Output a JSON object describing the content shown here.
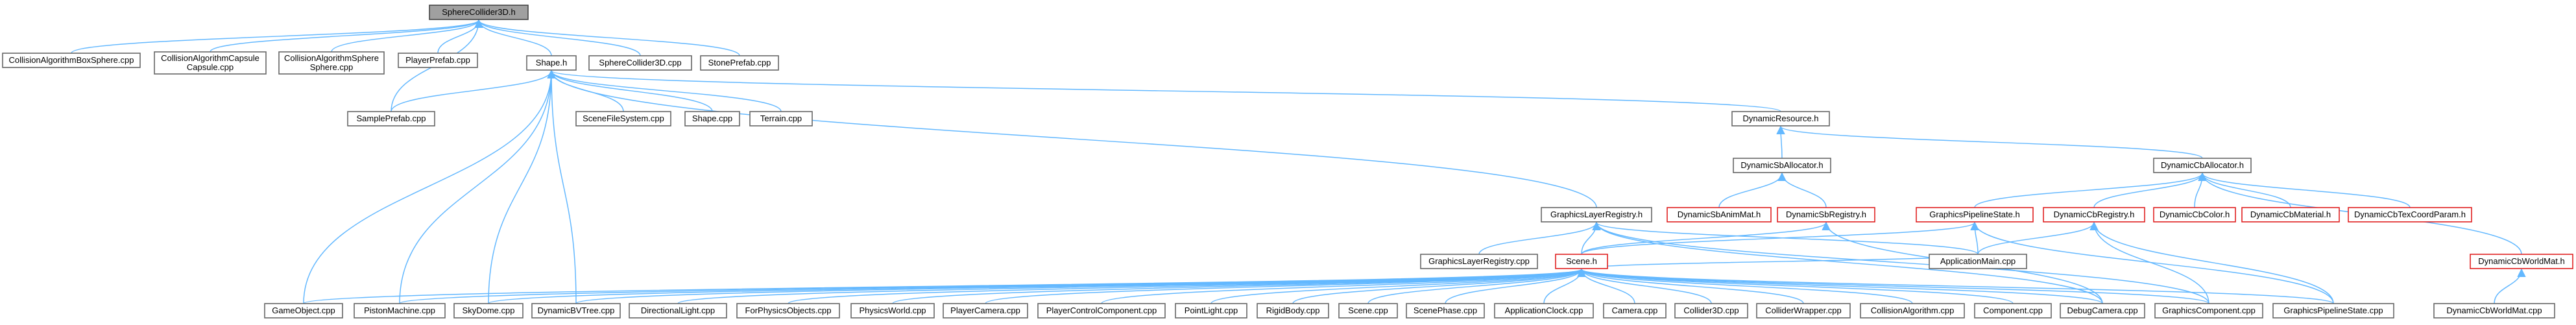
{
  "colors": {
    "edge": "#63b8ff",
    "node_border": "#666666",
    "focus_fill": "#a0a0a0",
    "incomplete_border": "#e02020"
  },
  "nodes": [
    {
      "id": "SphereCollider3D_h",
      "lines": [
        "SphereCollider3D.h"
      ],
      "style": "focus"
    },
    {
      "id": "CollisionAlgorithmBoxSphere_cpp",
      "lines": [
        "CollisionAlgorithmBoxSphere.cpp"
      ]
    },
    {
      "id": "CollisionAlgorithmCapsuleCapsule_cpp",
      "lines": [
        "CollisionAlgorithmCapsule",
        "Capsule.cpp"
      ]
    },
    {
      "id": "CollisionAlgorithmSphereSphere_cpp",
      "lines": [
        "CollisionAlgorithmSphere",
        "Sphere.cpp"
      ]
    },
    {
      "id": "PlayerPrefab_cpp",
      "lines": [
        "PlayerPrefab.cpp"
      ]
    },
    {
      "id": "Shape_h",
      "lines": [
        "Shape.h"
      ]
    },
    {
      "id": "SphereCollider3D_cpp",
      "lines": [
        "SphereCollider3D.cpp"
      ]
    },
    {
      "id": "StonePrefab_cpp",
      "lines": [
        "StonePrefab.cpp"
      ]
    },
    {
      "id": "SamplePrefab_cpp",
      "lines": [
        "SamplePrefab.cpp"
      ]
    },
    {
      "id": "SceneFileSystem_cpp",
      "lines": [
        "SceneFileSystem.cpp"
      ]
    },
    {
      "id": "Shape_cpp",
      "lines": [
        "Shape.cpp"
      ]
    },
    {
      "id": "Terrain_cpp",
      "lines": [
        "Terrain.cpp"
      ]
    },
    {
      "id": "DynamicResource_h",
      "lines": [
        "DynamicResource.h"
      ]
    },
    {
      "id": "DynamicSbAllocator_h",
      "lines": [
        "DynamicSbAllocator.h"
      ]
    },
    {
      "id": "DynamicCbAllocator_h",
      "lines": [
        "DynamicCbAllocator.h"
      ]
    },
    {
      "id": "GraphicsLayerRegistry_h",
      "lines": [
        "GraphicsLayerRegistry.h"
      ]
    },
    {
      "id": "DynamicSbAnimMat_h",
      "lines": [
        "DynamicSbAnimMat.h"
      ],
      "style": "red"
    },
    {
      "id": "DynamicSbRegistry_h",
      "lines": [
        "DynamicSbRegistry.h"
      ],
      "style": "red"
    },
    {
      "id": "GraphicsPipelineState_h",
      "lines": [
        "GraphicsPipelineState.h"
      ],
      "style": "red"
    },
    {
      "id": "DynamicCbRegistry_h",
      "lines": [
        "DynamicCbRegistry.h"
      ],
      "style": "red"
    },
    {
      "id": "DynamicCbColor_h",
      "lines": [
        "DynamicCbColor.h"
      ],
      "style": "red"
    },
    {
      "id": "DynamicCbMaterial_h",
      "lines": [
        "DynamicCbMaterial.h"
      ],
      "style": "red"
    },
    {
      "id": "DynamicCbTexCoordParam_h",
      "lines": [
        "DynamicCbTexCoordParam.h"
      ],
      "style": "red"
    },
    {
      "id": "GraphicsLayerRegistry_cpp",
      "lines": [
        "GraphicsLayerRegistry.cpp"
      ]
    },
    {
      "id": "Scene_h",
      "lines": [
        "Scene.h"
      ],
      "style": "red"
    },
    {
      "id": "ApplicationMain_cpp",
      "lines": [
        "ApplicationMain.cpp"
      ]
    },
    {
      "id": "DynamicCbWorldMat_h",
      "lines": [
        "DynamicCbWorldMat.h"
      ],
      "style": "red"
    },
    {
      "id": "GameObject_cpp",
      "lines": [
        "GameObject.cpp"
      ]
    },
    {
      "id": "PistonMachine_cpp",
      "lines": [
        "PistonMachine.cpp"
      ]
    },
    {
      "id": "SkyDome_cpp",
      "lines": [
        "SkyDome.cpp"
      ]
    },
    {
      "id": "DynamicBVTree_cpp",
      "lines": [
        "DynamicBVTree.cpp"
      ]
    },
    {
      "id": "DirectionalLight_cpp",
      "lines": [
        "DirectionalLight.cpp"
      ]
    },
    {
      "id": "ForPhysicsObjects_cpp",
      "lines": [
        "ForPhysicsObjects.cpp"
      ]
    },
    {
      "id": "PhysicsWorld_cpp",
      "lines": [
        "PhysicsWorld.cpp"
      ]
    },
    {
      "id": "PlayerCamera_cpp",
      "lines": [
        "PlayerCamera.cpp"
      ]
    },
    {
      "id": "PlayerControlComponent_cpp",
      "lines": [
        "PlayerControlComponent.cpp"
      ]
    },
    {
      "id": "PointLight_cpp",
      "lines": [
        "PointLight.cpp"
      ]
    },
    {
      "id": "RigidBody_cpp",
      "lines": [
        "RigidBody.cpp"
      ]
    },
    {
      "id": "Scene_cpp",
      "lines": [
        "Scene.cpp"
      ]
    },
    {
      "id": "ScenePhase_cpp",
      "lines": [
        "ScenePhase.cpp"
      ]
    },
    {
      "id": "ApplicationClock_cpp",
      "lines": [
        "ApplicationClock.cpp"
      ]
    },
    {
      "id": "Camera_cpp",
      "lines": [
        "Camera.cpp"
      ]
    },
    {
      "id": "Collider3D_cpp",
      "lines": [
        "Collider3D.cpp"
      ]
    },
    {
      "id": "ColliderWrapper_cpp",
      "lines": [
        "ColliderWrapper.cpp"
      ]
    },
    {
      "id": "CollisionAlgorithm_cpp",
      "lines": [
        "CollisionAlgorithm.cpp"
      ]
    },
    {
      "id": "Component_cpp",
      "lines": [
        "Component.cpp"
      ]
    },
    {
      "id": "DebugCamera_cpp",
      "lines": [
        "DebugCamera.cpp"
      ]
    },
    {
      "id": "GraphicsComponent_cpp",
      "lines": [
        "GraphicsComponent.cpp"
      ]
    },
    {
      "id": "GraphicsPipelineState_cpp",
      "lines": [
        "GraphicsPipelineState.cpp"
      ]
    },
    {
      "id": "DynamicCbWorldMat_cpp",
      "lines": [
        "DynamicCbWorldMat.cpp"
      ]
    }
  ],
  "edges": [
    [
      "CollisionAlgorithmBoxSphere_cpp",
      "SphereCollider3D_h"
    ],
    [
      "CollisionAlgorithmCapsuleCapsule_cpp",
      "SphereCollider3D_h"
    ],
    [
      "CollisionAlgorithmSphereSphere_cpp",
      "SphereCollider3D_h"
    ],
    [
      "PlayerPrefab_cpp",
      "SphereCollider3D_h"
    ],
    [
      "Shape_h",
      "SphereCollider3D_h"
    ],
    [
      "SphereCollider3D_cpp",
      "SphereCollider3D_h"
    ],
    [
      "StonePrefab_cpp",
      "SphereCollider3D_h"
    ],
    [
      "SamplePrefab_cpp",
      "SphereCollider3D_h"
    ],
    [
      "SamplePrefab_cpp",
      "Shape_h"
    ],
    [
      "SceneFileSystem_cpp",
      "Shape_h"
    ],
    [
      "Shape_cpp",
      "Shape_h"
    ],
    [
      "Terrain_cpp",
      "Shape_h"
    ],
    [
      "DynamicResource_h",
      "Shape_h"
    ],
    [
      "GraphicsLayerRegistry_h",
      "Shape_h"
    ],
    [
      "GameObject_cpp",
      "Shape_h"
    ],
    [
      "PistonMachine_cpp",
      "Shape_h"
    ],
    [
      "SkyDome_cpp",
      "Shape_h"
    ],
    [
      "DynamicBVTree_cpp",
      "Shape_h"
    ],
    [
      "DynamicSbAllocator_h",
      "DynamicResource_h"
    ],
    [
      "DynamicCbAllocator_h",
      "DynamicResource_h"
    ],
    [
      "DynamicSbAnimMat_h",
      "DynamicSbAllocator_h"
    ],
    [
      "DynamicSbRegistry_h",
      "DynamicSbAllocator_h"
    ],
    [
      "GraphicsPipelineState_h",
      "DynamicCbAllocator_h"
    ],
    [
      "DynamicCbRegistry_h",
      "DynamicCbAllocator_h"
    ],
    [
      "DynamicCbColor_h",
      "DynamicCbAllocator_h"
    ],
    [
      "DynamicCbMaterial_h",
      "DynamicCbAllocator_h"
    ],
    [
      "DynamicCbTexCoordParam_h",
      "DynamicCbAllocator_h"
    ],
    [
      "DynamicCbWorldMat_h",
      "DynamicCbAllocator_h"
    ],
    [
      "GraphicsLayerRegistry_cpp",
      "GraphicsLayerRegistry_h"
    ],
    [
      "Scene_h",
      "GraphicsLayerRegistry_h"
    ],
    [
      "ApplicationMain_cpp",
      "GraphicsLayerRegistry_h"
    ],
    [
      "DebugCamera_cpp",
      "GraphicsLayerRegistry_h"
    ],
    [
      "GraphicsComponent_cpp",
      "GraphicsLayerRegistry_h"
    ],
    [
      "Scene_h",
      "DynamicSbRegistry_h"
    ],
    [
      "DebugCamera_cpp",
      "DynamicSbRegistry_h"
    ],
    [
      "ApplicationMain_cpp",
      "GraphicsPipelineState_h"
    ],
    [
      "Scene_h",
      "GraphicsPipelineState_h"
    ],
    [
      "GraphicsPipelineState_cpp",
      "GraphicsPipelineState_h"
    ],
    [
      "ApplicationMain_cpp",
      "DynamicCbRegistry_h"
    ],
    [
      "GraphicsComponent_cpp",
      "DynamicCbRegistry_h"
    ],
    [
      "GraphicsPipelineState_cpp",
      "DynamicCbRegistry_h"
    ],
    [
      "DynamicCbWorldMat_cpp",
      "DynamicCbWorldMat_h"
    ],
    [
      "GameObject_cpp",
      "Scene_h"
    ],
    [
      "PistonMachine_cpp",
      "Scene_h"
    ],
    [
      "SkyDome_cpp",
      "Scene_h"
    ],
    [
      "DynamicBVTree_cpp",
      "Scene_h"
    ],
    [
      "DirectionalLight_cpp",
      "Scene_h"
    ],
    [
      "ForPhysicsObjects_cpp",
      "Scene_h"
    ],
    [
      "PhysicsWorld_cpp",
      "Scene_h"
    ],
    [
      "PlayerCamera_cpp",
      "Scene_h"
    ],
    [
      "PlayerControlComponent_cpp",
      "Scene_h"
    ],
    [
      "PointLight_cpp",
      "Scene_h"
    ],
    [
      "RigidBody_cpp",
      "Scene_h"
    ],
    [
      "Scene_cpp",
      "Scene_h"
    ],
    [
      "ScenePhase_cpp",
      "Scene_h"
    ],
    [
      "ApplicationClock_cpp",
      "Scene_h"
    ],
    [
      "Camera_cpp",
      "Scene_h"
    ],
    [
      "Collider3D_cpp",
      "Scene_h"
    ],
    [
      "ColliderWrapper_cpp",
      "Scene_h"
    ],
    [
      "CollisionAlgorithm_cpp",
      "Scene_h"
    ],
    [
      "Component_cpp",
      "Scene_h"
    ],
    [
      "DebugCamera_cpp",
      "Scene_h"
    ],
    [
      "GraphicsComponent_cpp",
      "Scene_h"
    ],
    [
      "GraphicsPipelineState_cpp",
      "Scene_h"
    ],
    [
      "ApplicationMain_cpp",
      "Scene_h"
    ]
  ]
}
